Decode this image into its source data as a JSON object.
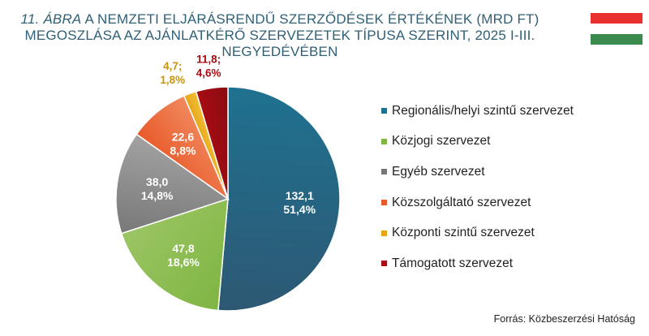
{
  "title": {
    "figure_label": "11. ÁBRA",
    "text_line1": " A NEMZETI ELJÁRÁSRENDŰ SZERZŐDÉSEK ÉRTÉKÉNEK (MRD FT)",
    "line2": "MEGOSZLÁSA AZ AJÁNLATKÉRŐ SZERVEZETEK TÍPUSA SZERINT, 2025 I-III.",
    "line3": "NEGYEDÉVÉBEN"
  },
  "flag_colors": [
    "#e8312f",
    "#ffffff",
    "#3b8b4e"
  ],
  "source": "Forrás: Közbeszerzési Hatóság",
  "chart_data": {
    "type": "pie",
    "start_angle_deg": 0,
    "direction": "clockwise",
    "legend_position": "right",
    "series": [
      {
        "name": "Regionális/helyi szintű szervezet",
        "value": 132.1,
        "percent": 51.4,
        "value_label": "132,1",
        "percent_label": "51,4%",
        "color": "#1f7190",
        "color_dark": "#2d5873",
        "label_color": "#ffffff"
      },
      {
        "name": "Közjogi szervezet",
        "value": 47.8,
        "percent": 18.6,
        "value_label": "47,8",
        "percent_label": "18,6%",
        "color": "#7fb542",
        "color_dark": "#9bc565",
        "label_color": "#ffffff"
      },
      {
        "name": "Egyéb szervezet",
        "value": 38.0,
        "percent": 14.8,
        "value_label": "38,0",
        "percent_label": "14,8%",
        "color": "#787878",
        "color_dark": "#a2a2a2",
        "label_color": "#ffffff"
      },
      {
        "name": "Közszolgáltató szervezet",
        "value": 22.6,
        "percent": 8.8,
        "value_label": "22,6",
        "percent_label": "8,8%",
        "color": "#e95a2a",
        "color_dark": "#f08a5f",
        "label_color": "#ffffff"
      },
      {
        "name": "Központi szintű szervezet",
        "value": 4.7,
        "percent": 1.8,
        "value_label": "4,7;",
        "percent_label": "1,8%",
        "color": "#e6a512",
        "color_dark": "#f2bf3c",
        "label_color": "#c8950f",
        "label_outside": true
      },
      {
        "name": "Támogatott szervezet",
        "value": 11.8,
        "percent": 4.6,
        "value_label": "11,8;",
        "percent_label": "4,6%",
        "color": "#a80d13",
        "color_dark": "#8a0b10",
        "label_color": "#a80d13",
        "label_outside": true
      }
    ]
  }
}
